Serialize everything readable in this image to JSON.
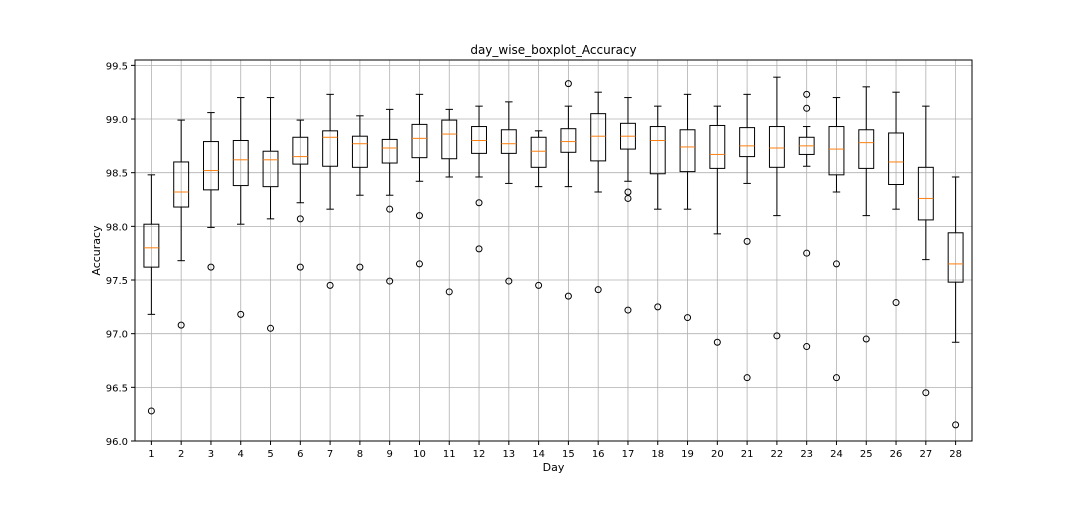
{
  "chart_data": {
    "type": "boxplot",
    "title": "day_wise_boxplot_Accuracy",
    "xlabel": "Day",
    "ylabel": "Accuracy",
    "ylim": [
      96.0,
      99.55
    ],
    "yticks": [
      "96.0",
      "96.5",
      "97.0",
      "97.5",
      "98.0",
      "98.5",
      "99.0",
      "99.5"
    ],
    "grid": true,
    "colors": {
      "box": "#000000",
      "median": "#ff7f0e",
      "grid": "#b0b0b0"
    },
    "categories": [
      "1",
      "2",
      "3",
      "4",
      "5",
      "6",
      "7",
      "8",
      "9",
      "10",
      "11",
      "12",
      "13",
      "14",
      "15",
      "16",
      "17",
      "18",
      "19",
      "20",
      "21",
      "22",
      "23",
      "24",
      "25",
      "26",
      "27",
      "28"
    ],
    "boxes": [
      {
        "whislo": 97.18,
        "q1": 97.62,
        "med": 97.8,
        "q3": 98.02,
        "whishi": 98.48,
        "fliers": [
          96.28
        ]
      },
      {
        "whislo": 97.68,
        "q1": 98.18,
        "med": 98.32,
        "q3": 98.6,
        "whishi": 98.99,
        "fliers": [
          97.08
        ]
      },
      {
        "whislo": 97.99,
        "q1": 98.34,
        "med": 98.52,
        "q3": 98.79,
        "whishi": 99.06,
        "fliers": [
          97.62
        ]
      },
      {
        "whislo": 98.02,
        "q1": 98.38,
        "med": 98.62,
        "q3": 98.8,
        "whishi": 99.2,
        "fliers": [
          97.18
        ]
      },
      {
        "whislo": 98.07,
        "q1": 98.37,
        "med": 98.62,
        "q3": 98.7,
        "whishi": 99.2,
        "fliers": [
          97.05
        ]
      },
      {
        "whislo": 98.22,
        "q1": 98.58,
        "med": 98.65,
        "q3": 98.83,
        "whishi": 98.99,
        "fliers": [
          98.07,
          97.62
        ]
      },
      {
        "whislo": 98.16,
        "q1": 98.56,
        "med": 98.83,
        "q3": 98.89,
        "whishi": 99.23,
        "fliers": [
          97.45
        ]
      },
      {
        "whislo": 98.29,
        "q1": 98.55,
        "med": 98.77,
        "q3": 98.84,
        "whishi": 99.03,
        "fliers": [
          97.62
        ]
      },
      {
        "whislo": 98.29,
        "q1": 98.59,
        "med": 98.73,
        "q3": 98.81,
        "whishi": 99.09,
        "fliers": [
          98.16,
          97.49
        ]
      },
      {
        "whislo": 98.42,
        "q1": 98.64,
        "med": 98.82,
        "q3": 98.95,
        "whishi": 99.23,
        "fliers": [
          98.1,
          97.65
        ]
      },
      {
        "whislo": 98.46,
        "q1": 98.63,
        "med": 98.86,
        "q3": 98.99,
        "whishi": 99.09,
        "fliers": [
          97.39
        ]
      },
      {
        "whislo": 98.46,
        "q1": 98.68,
        "med": 98.8,
        "q3": 98.93,
        "whishi": 99.12,
        "fliers": [
          98.22,
          97.79
        ]
      },
      {
        "whislo": 98.4,
        "q1": 98.68,
        "med": 98.77,
        "q3": 98.9,
        "whishi": 99.16,
        "fliers": [
          97.49
        ]
      },
      {
        "whislo": 98.37,
        "q1": 98.55,
        "med": 98.7,
        "q3": 98.83,
        "whishi": 98.89,
        "fliers": [
          97.45
        ]
      },
      {
        "whislo": 98.37,
        "q1": 98.69,
        "med": 98.79,
        "q3": 98.91,
        "whishi": 99.12,
        "fliers": [
          99.33,
          97.35
        ]
      },
      {
        "whislo": 98.32,
        "q1": 98.61,
        "med": 98.84,
        "q3": 99.05,
        "whishi": 99.25,
        "fliers": [
          97.41
        ]
      },
      {
        "whislo": 98.42,
        "q1": 98.72,
        "med": 98.84,
        "q3": 98.96,
        "whishi": 99.2,
        "fliers": [
          98.32,
          98.26,
          97.22
        ]
      },
      {
        "whislo": 98.16,
        "q1": 98.49,
        "med": 98.8,
        "q3": 98.93,
        "whishi": 99.12,
        "fliers": [
          97.25
        ]
      },
      {
        "whislo": 98.16,
        "q1": 98.51,
        "med": 98.74,
        "q3": 98.9,
        "whishi": 99.23,
        "fliers": [
          97.15
        ]
      },
      {
        "whislo": 97.93,
        "q1": 98.54,
        "med": 98.67,
        "q3": 98.94,
        "whishi": 99.12,
        "fliers": [
          96.92
        ]
      },
      {
        "whislo": 98.4,
        "q1": 98.65,
        "med": 98.75,
        "q3": 98.92,
        "whishi": 99.23,
        "fliers": [
          97.86,
          96.59
        ]
      },
      {
        "whislo": 98.1,
        "q1": 98.55,
        "med": 98.73,
        "q3": 98.93,
        "whishi": 99.39,
        "fliers": [
          96.98
        ]
      },
      {
        "whislo": 98.56,
        "q1": 98.67,
        "med": 98.75,
        "q3": 98.83,
        "whishi": 98.93,
        "fliers": [
          99.23,
          99.1,
          97.75,
          96.88
        ]
      },
      {
        "whislo": 98.32,
        "q1": 98.48,
        "med": 98.72,
        "q3": 98.93,
        "whishi": 99.2,
        "fliers": [
          97.65,
          96.59
        ]
      },
      {
        "whislo": 98.1,
        "q1": 98.54,
        "med": 98.78,
        "q3": 98.9,
        "whishi": 99.3,
        "fliers": [
          96.95
        ]
      },
      {
        "whislo": 98.16,
        "q1": 98.39,
        "med": 98.6,
        "q3": 98.87,
        "whishi": 99.25,
        "fliers": [
          97.29
        ]
      },
      {
        "whislo": 97.69,
        "q1": 98.06,
        "med": 98.26,
        "q3": 98.55,
        "whishi": 99.12,
        "fliers": [
          96.45
        ]
      },
      {
        "whislo": 96.92,
        "q1": 97.48,
        "med": 97.65,
        "q3": 97.94,
        "whishi": 98.46,
        "fliers": [
          96.15
        ]
      }
    ]
  }
}
